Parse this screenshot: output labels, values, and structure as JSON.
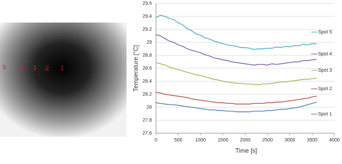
{
  "image": {
    "labels": [
      "5",
      ".4",
      "3",
      ".2",
      ".1"
    ]
  },
  "chart_data": {
    "type": "line",
    "x_label": "Time [s]",
    "y_label": "Temperature [°C]",
    "x": [
      0,
      100,
      200,
      300,
      400,
      500,
      600,
      700,
      800,
      900,
      1000,
      1100,
      1200,
      1300,
      1400,
      1500,
      1600,
      1700,
      1800,
      1900,
      2000,
      2100,
      2200,
      2300,
      2400,
      2500,
      2600,
      2700,
      2800,
      2900,
      3000,
      3100,
      3200,
      3300,
      3400,
      3500,
      3600
    ],
    "series": [
      {
        "name": "Spot 5",
        "color": "#4bacc6",
        "values": [
          29.38,
          29.42,
          29.4,
          29.37,
          29.35,
          29.3,
          29.27,
          29.21,
          29.18,
          29.13,
          29.11,
          29.07,
          29.05,
          29.02,
          29.0,
          28.98,
          28.96,
          28.95,
          28.94,
          28.92,
          28.92,
          28.91,
          28.89,
          28.9,
          28.9,
          28.91,
          28.91,
          28.93,
          28.92,
          28.94,
          28.93,
          28.95,
          28.95,
          28.97,
          28.96,
          28.98,
          28.98
        ]
      },
      {
        "name": "Spot 4",
        "color": "#7f5fa8",
        "values": [
          29.12,
          29.1,
          29.06,
          29.02,
          29.0,
          28.96,
          28.94,
          28.9,
          28.88,
          28.86,
          28.84,
          28.81,
          28.79,
          28.76,
          28.75,
          28.73,
          28.72,
          28.7,
          28.69,
          28.68,
          28.67,
          28.66,
          28.65,
          28.66,
          28.66,
          28.65,
          28.67,
          28.66,
          28.67,
          28.68,
          28.69,
          28.7,
          28.7,
          28.72,
          28.72,
          28.73,
          28.74
        ]
      },
      {
        "name": "Spot 3",
        "color": "#9bbb59",
        "values": [
          28.69,
          28.67,
          28.65,
          28.62,
          28.6,
          28.58,
          28.56,
          28.54,
          28.52,
          28.5,
          28.49,
          28.47,
          28.45,
          28.43,
          28.42,
          28.4,
          28.39,
          28.38,
          28.37,
          28.37,
          28.36,
          28.36,
          28.35,
          28.35,
          28.36,
          28.36,
          28.37,
          28.38,
          28.39,
          28.39,
          28.4,
          28.41,
          28.42,
          28.43,
          28.43,
          28.44,
          28.45
        ]
      },
      {
        "name": "Spot 2",
        "color": "#c0504d",
        "values": [
          28.23,
          28.22,
          28.2,
          28.19,
          28.18,
          28.17,
          28.16,
          28.15,
          28.13,
          28.12,
          28.11,
          28.1,
          28.09,
          28.08,
          28.07,
          28.07,
          28.06,
          28.06,
          28.05,
          28.05,
          28.05,
          28.05,
          28.06,
          28.06,
          28.06,
          28.07,
          28.07,
          28.08,
          28.08,
          28.09,
          28.1,
          28.11,
          28.12,
          28.13,
          28.14,
          28.16,
          28.17
        ]
      },
      {
        "name": "Spot 1",
        "color": "#4f81bd",
        "values": [
          28.07,
          28.06,
          28.05,
          28.04,
          28.04,
          28.03,
          28.02,
          28.01,
          28.0,
          27.99,
          27.98,
          27.97,
          27.96,
          27.96,
          27.95,
          27.95,
          27.94,
          27.94,
          27.93,
          27.93,
          27.93,
          27.93,
          27.94,
          27.94,
          27.94,
          27.95,
          27.95,
          27.96,
          27.97,
          27.97,
          27.98,
          27.99,
          28.0,
          28.02,
          28.04,
          28.06,
          28.08
        ]
      }
    ],
    "xlim": [
      0,
      4000
    ],
    "xticks": [
      0,
      500,
      1000,
      1500,
      2000,
      2500,
      3000,
      3500,
      4000
    ],
    "ylim": [
      27.6,
      29.6
    ],
    "yticks": [
      27.6,
      27.8,
      28,
      28.2,
      28.4,
      28.6,
      28.8,
      29,
      29.2,
      29.4,
      29.6
    ],
    "grid": true,
    "legend": "right"
  }
}
